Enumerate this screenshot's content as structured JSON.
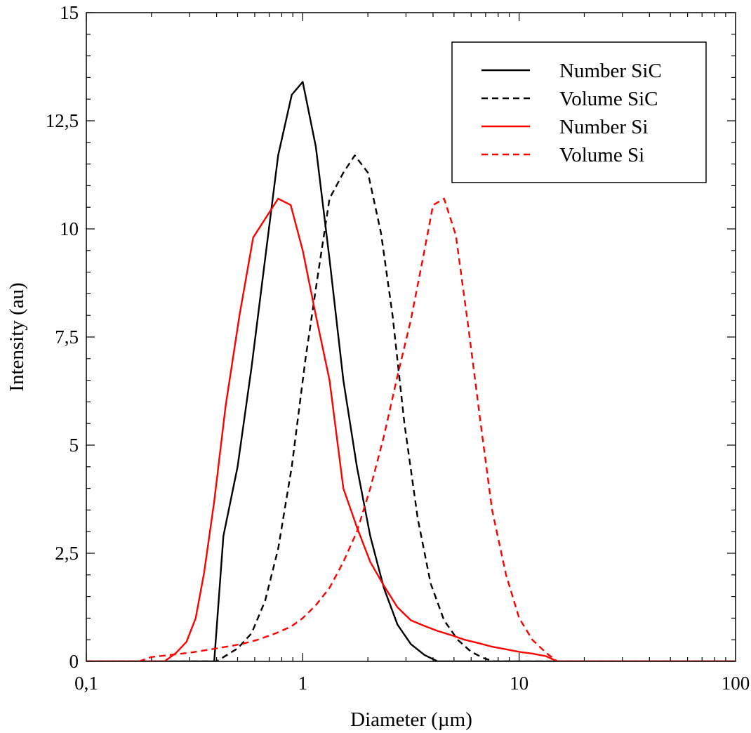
{
  "chart_data": {
    "type": "line",
    "title": "",
    "xlabel": "Diameter (µm)",
    "ylabel": "Intensity (au)",
    "xscale": "log",
    "xlim": [
      0.1,
      100
    ],
    "ylim": [
      0,
      15
    ],
    "xticks": [
      {
        "value": 0.1,
        "label": "0,1"
      },
      {
        "value": 1,
        "label": "1"
      },
      {
        "value": 10,
        "label": "10"
      },
      {
        "value": 100,
        "label": "100"
      }
    ],
    "yticks": [
      {
        "value": 0,
        "label": "0"
      },
      {
        "value": 2.5,
        "label": "2,5"
      },
      {
        "value": 5,
        "label": "5"
      },
      {
        "value": 7.5,
        "label": "7,5"
      },
      {
        "value": 10,
        "label": "10"
      },
      {
        "value": 12.5,
        "label": "12,5"
      },
      {
        "value": 15,
        "label": "15"
      }
    ],
    "grid": false,
    "legend": "top-right",
    "series": [
      {
        "name": "Number SiC",
        "color": "#000000",
        "dash": "solid",
        "points": [
          [
            0.1,
            0
          ],
          [
            0.39,
            0
          ],
          [
            0.43,
            2.9
          ],
          [
            0.5,
            4.5
          ],
          [
            0.58,
            6.8
          ],
          [
            0.67,
            9.3
          ],
          [
            0.77,
            11.7
          ],
          [
            0.89,
            13.1
          ],
          [
            1.0,
            13.4
          ],
          [
            1.15,
            11.9
          ],
          [
            1.33,
            9.3
          ],
          [
            1.54,
            6.5
          ],
          [
            1.78,
            4.5
          ],
          [
            2.05,
            2.9
          ],
          [
            2.37,
            1.7
          ],
          [
            2.74,
            0.85
          ],
          [
            3.16,
            0.4
          ],
          [
            3.65,
            0.15
          ],
          [
            4.2,
            0
          ],
          [
            100,
            0
          ]
        ]
      },
      {
        "name": "Volume SiC",
        "color": "#000000",
        "dash": "dashed",
        "points": [
          [
            0.1,
            0
          ],
          [
            0.4,
            0
          ],
          [
            0.5,
            0.3
          ],
          [
            0.58,
            0.65
          ],
          [
            0.67,
            1.4
          ],
          [
            0.77,
            2.6
          ],
          [
            0.89,
            4.5
          ],
          [
            1.03,
            7.0
          ],
          [
            1.18,
            9.0
          ],
          [
            1.33,
            10.7
          ],
          [
            1.54,
            11.3
          ],
          [
            1.74,
            11.7
          ],
          [
            2.0,
            11.3
          ],
          [
            2.3,
            9.9
          ],
          [
            2.6,
            8.0
          ],
          [
            2.95,
            5.5
          ],
          [
            3.4,
            3.3
          ],
          [
            3.9,
            1.8
          ],
          [
            4.5,
            0.95
          ],
          [
            5.2,
            0.5
          ],
          [
            6.0,
            0.22
          ],
          [
            6.9,
            0.07
          ],
          [
            7.7,
            0
          ],
          [
            100,
            0
          ]
        ]
      },
      {
        "name": "Number Si",
        "color": "#ff0000",
        "dash": "solid",
        "points": [
          [
            0.1,
            0
          ],
          [
            0.23,
            0
          ],
          [
            0.26,
            0.2
          ],
          [
            0.29,
            0.45
          ],
          [
            0.32,
            1.0
          ],
          [
            0.35,
            2.05
          ],
          [
            0.39,
            3.7
          ],
          [
            0.44,
            5.9
          ],
          [
            0.51,
            8.0
          ],
          [
            0.59,
            9.8
          ],
          [
            0.77,
            10.7
          ],
          [
            0.88,
            10.55
          ],
          [
            1.0,
            9.5
          ],
          [
            1.15,
            8.0
          ],
          [
            1.33,
            6.5
          ],
          [
            1.54,
            4.0
          ],
          [
            1.78,
            3.1
          ],
          [
            2.05,
            2.3
          ],
          [
            2.37,
            1.75
          ],
          [
            2.74,
            1.25
          ],
          [
            3.16,
            0.95
          ],
          [
            3.65,
            0.82
          ],
          [
            4.22,
            0.7
          ],
          [
            4.9,
            0.6
          ],
          [
            5.6,
            0.5
          ],
          [
            6.5,
            0.42
          ],
          [
            7.5,
            0.34
          ],
          [
            8.7,
            0.28
          ],
          [
            10.0,
            0.22
          ],
          [
            11.5,
            0.18
          ],
          [
            13.3,
            0.12
          ],
          [
            15.0,
            0
          ],
          [
            100,
            0
          ]
        ]
      },
      {
        "name": "Volume Si",
        "color": "#ff0000",
        "dash": "dashed",
        "points": [
          [
            0.1,
            0
          ],
          [
            0.175,
            0
          ],
          [
            0.2,
            0.1
          ],
          [
            0.3,
            0.2
          ],
          [
            0.4,
            0.3
          ],
          [
            0.52,
            0.4
          ],
          [
            0.62,
            0.5
          ],
          [
            0.75,
            0.65
          ],
          [
            0.88,
            0.8
          ],
          [
            1.0,
            1.0
          ],
          [
            1.15,
            1.3
          ],
          [
            1.33,
            1.7
          ],
          [
            1.54,
            2.3
          ],
          [
            1.78,
            3.0
          ],
          [
            2.05,
            4.0
          ],
          [
            2.37,
            5.2
          ],
          [
            2.74,
            6.6
          ],
          [
            3.16,
            7.9
          ],
          [
            3.65,
            9.5
          ],
          [
            4.0,
            10.55
          ],
          [
            4.5,
            10.7
          ],
          [
            5.1,
            9.85
          ],
          [
            5.8,
            7.8
          ],
          [
            6.6,
            5.6
          ],
          [
            7.5,
            3.5
          ],
          [
            8.7,
            2.0
          ],
          [
            10.0,
            1.0
          ],
          [
            11.5,
            0.5
          ],
          [
            13.3,
            0.2
          ],
          [
            15.0,
            0
          ],
          [
            100,
            0
          ]
        ]
      }
    ]
  }
}
